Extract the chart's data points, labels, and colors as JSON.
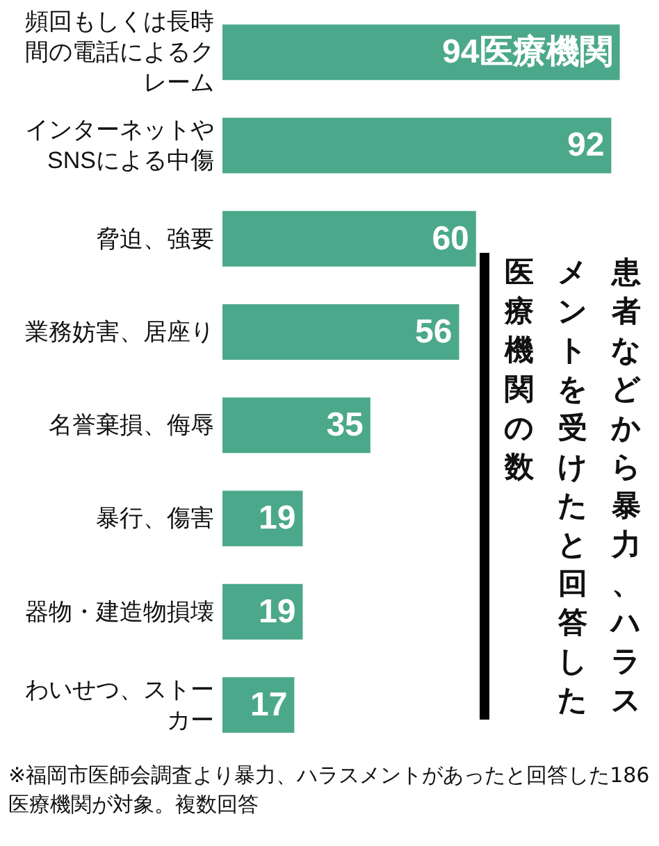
{
  "chart_data": {
    "type": "bar",
    "orientation": "horizontal",
    "title": "患者などから暴力、ハラスメントを受けたと回答した医療機関の数",
    "categories": [
      "頻回もしくは長時間の電話によるクレーム",
      "インターネットやSNSによる中傷",
      "脅迫、強要",
      "業務妨害、居座り",
      "名誉棄損、侮辱",
      "暴行、傷害",
      "器物・建造物損壊",
      "わいせつ、ストーカー"
    ],
    "values": [
      94,
      92,
      60,
      56,
      35,
      19,
      19,
      17
    ],
    "value_labels": [
      "94医療機関",
      "92",
      "60",
      "56",
      "35",
      "19",
      "19",
      "17"
    ],
    "color": "#4ca88b",
    "annotations": [
      "※福岡市医師会調査より暴力、ハラスメントがあったと回答した186医療機関が対象。複数回答"
    ]
  }
}
